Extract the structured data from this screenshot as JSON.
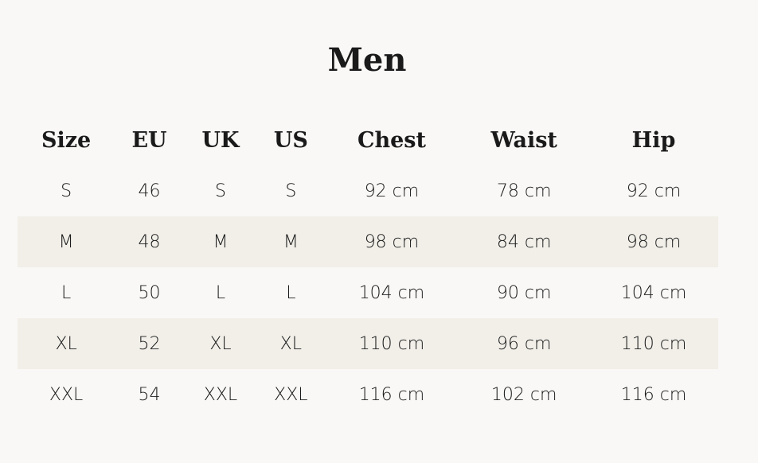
{
  "title": "Men",
  "headers": [
    "Size",
    "EU",
    "UK",
    "US",
    "Chest",
    "Waist",
    "Hip"
  ],
  "rows": [
    [
      "S",
      "46",
      "S",
      "S",
      "92 cm",
      "78 cm",
      "92 cm"
    ],
    [
      "M",
      "48",
      "M",
      "M",
      "98 cm",
      "84 cm",
      "98 cm"
    ],
    [
      "L",
      "50",
      "L",
      "L",
      "104 cm",
      "90 cm",
      "104 cm"
    ],
    [
      "XL",
      "52",
      "XL",
      "XL",
      "110 cm",
      "96 cm",
      "110 cm"
    ],
    [
      "XXL",
      "54",
      "XXL",
      "XXL",
      "116 cm",
      "102 cm",
      "116 cm"
    ]
  ],
  "colors": {
    "stripe": "#f1efe8",
    "background": "#f9f8f6"
  }
}
